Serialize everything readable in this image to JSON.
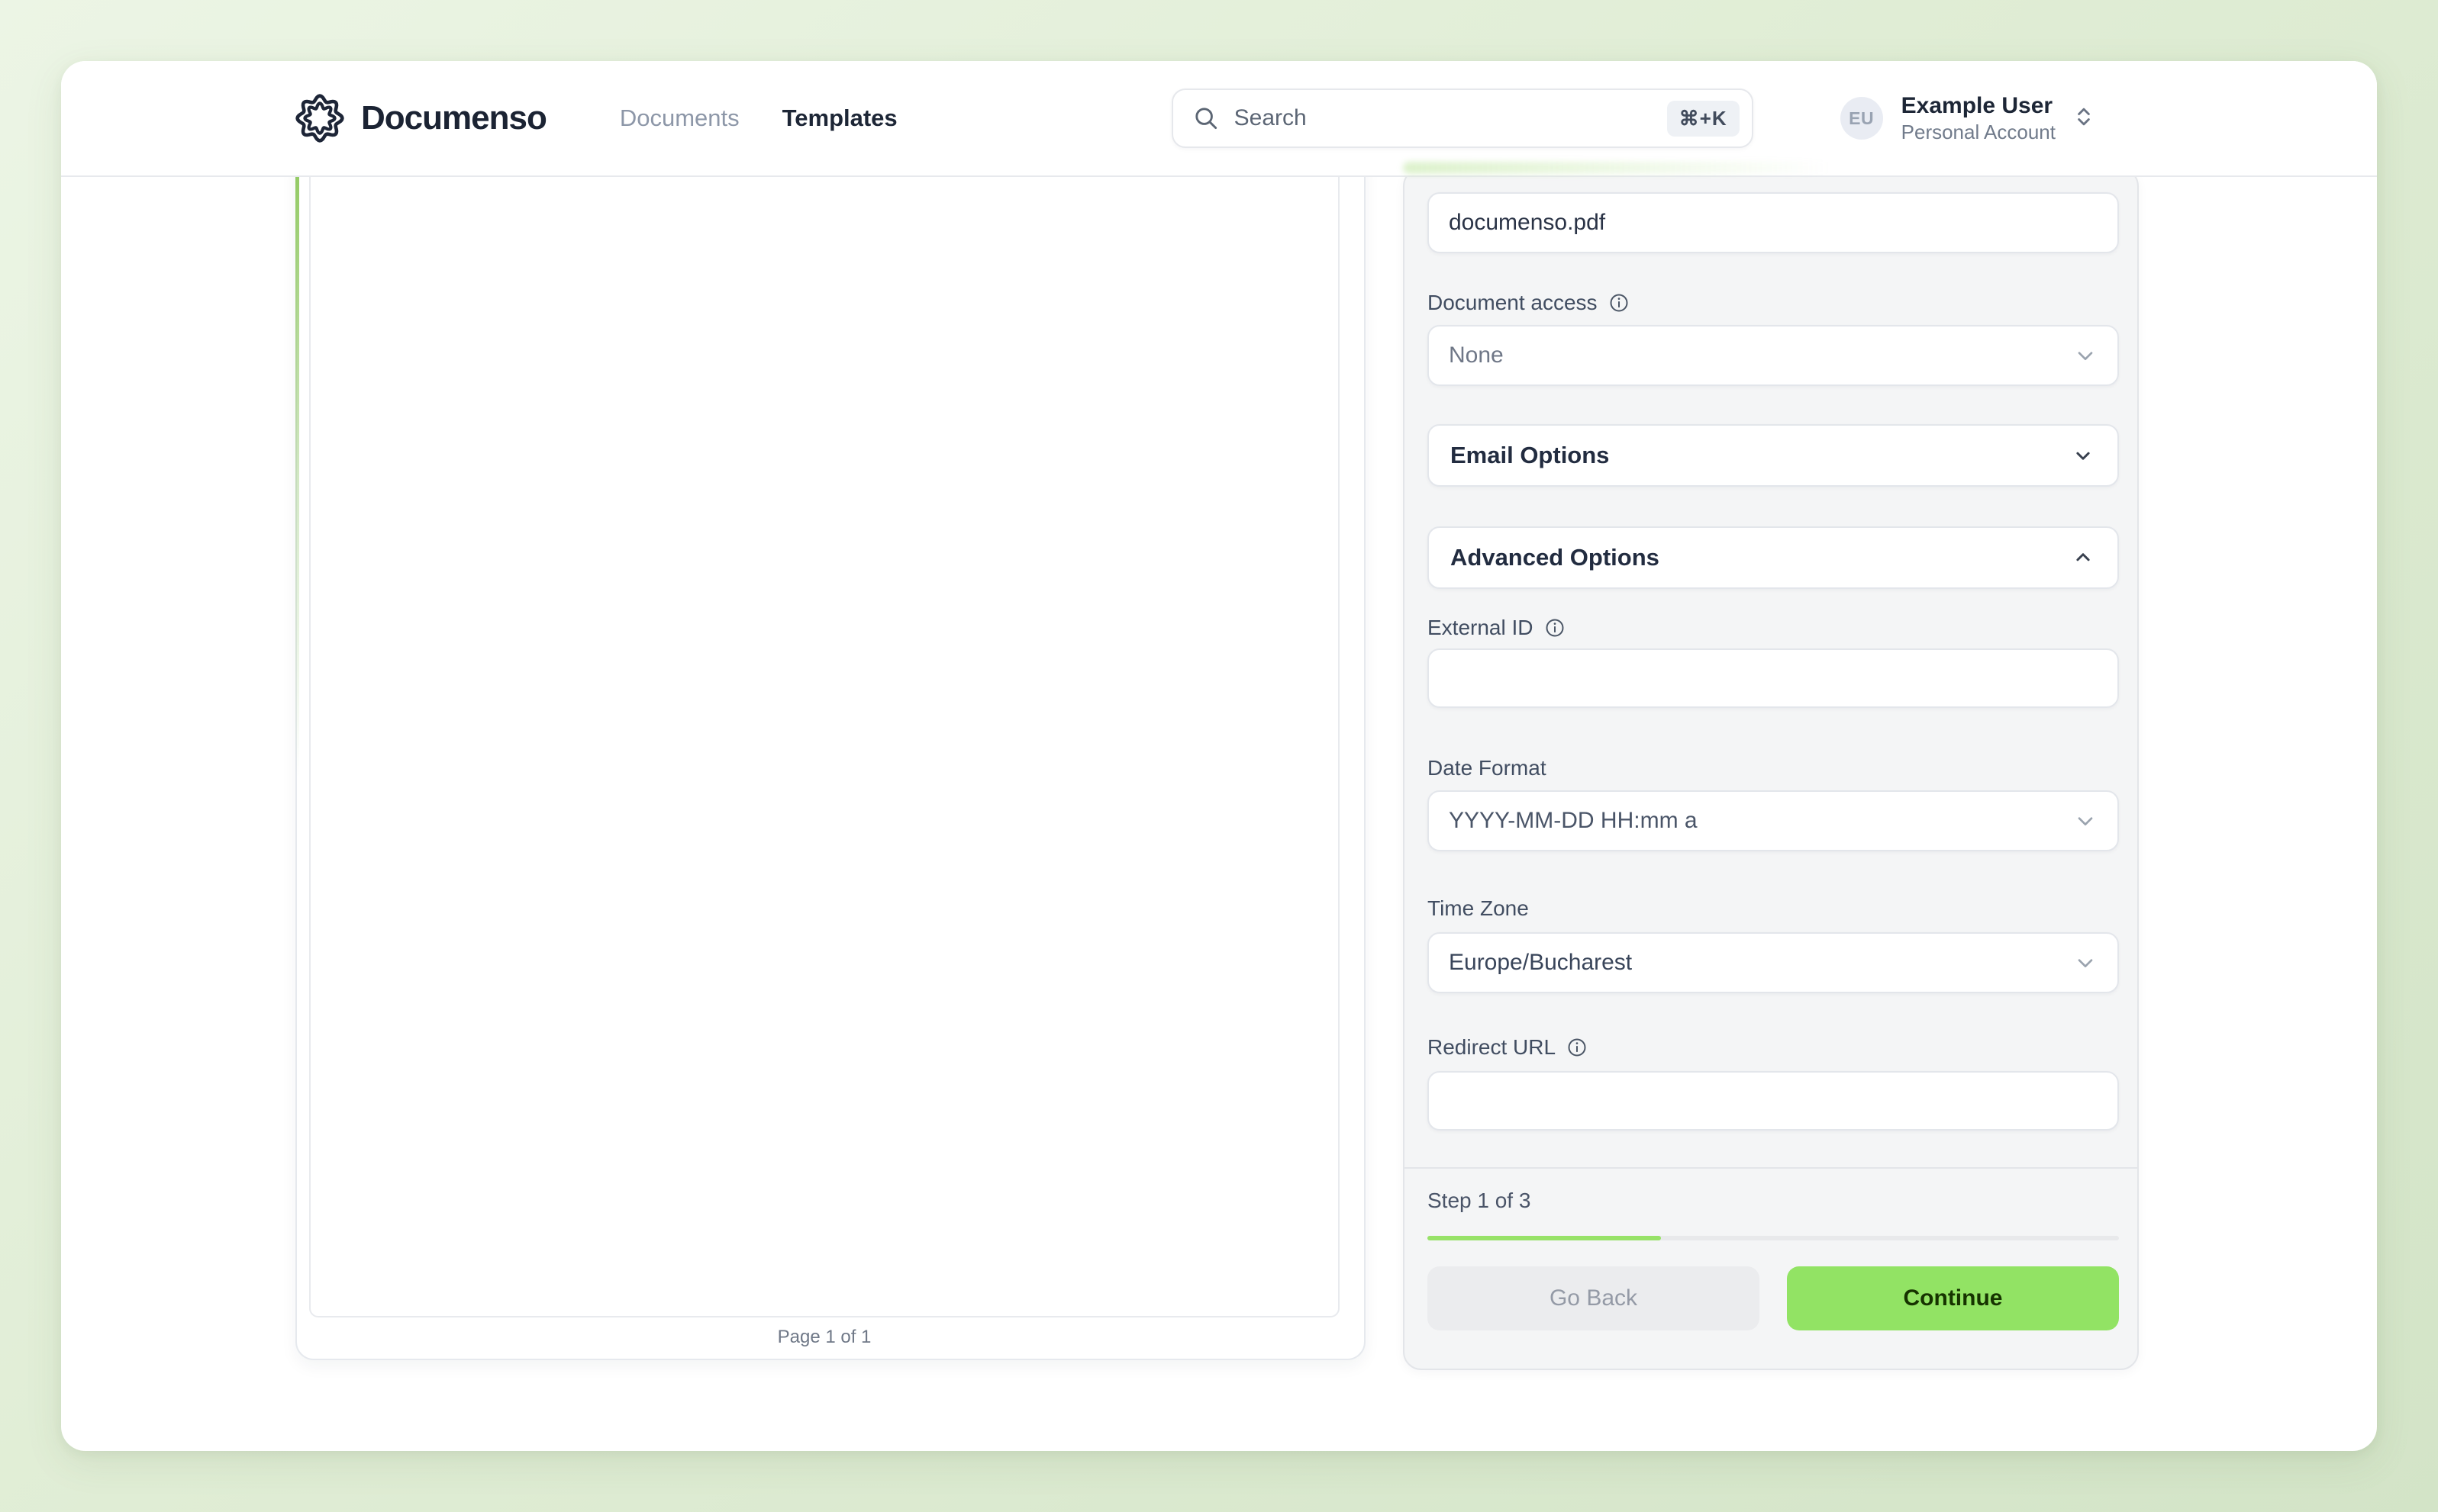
{
  "header": {
    "brand": "Documenso",
    "nav": {
      "documents": "Documents",
      "templates": "Templates"
    },
    "search": {
      "placeholder": "Search",
      "shortcut": "⌘+K"
    },
    "user": {
      "initials": "EU",
      "name": "Example User",
      "account_type": "Personal Account"
    }
  },
  "document_viewer": {
    "page_caption": "Page 1 of 1"
  },
  "form": {
    "title_value": "documenso.pdf",
    "document_access": {
      "label": "Document access",
      "value": "None"
    },
    "email_options": {
      "label": "Email Options"
    },
    "advanced_options": {
      "label": "Advanced Options"
    },
    "external_id": {
      "label": "External ID",
      "value": ""
    },
    "date_format": {
      "label": "Date Format",
      "value": "YYYY-MM-DD HH:mm a"
    },
    "time_zone": {
      "label": "Time Zone",
      "value": "Europe/Bucharest"
    },
    "redirect_url": {
      "label": "Redirect URL",
      "value": ""
    },
    "footer": {
      "step_text": "Step 1 of 3",
      "progress_percent": 33.8,
      "go_back_label": "Go Back",
      "continue_label": "Continue"
    }
  },
  "colors": {
    "primary_green": "#92e364",
    "progress_green": "#97e268",
    "background_green": "#e0edd5",
    "panel_gray": "#f4f5f6",
    "text_dark": "#1d2636"
  }
}
